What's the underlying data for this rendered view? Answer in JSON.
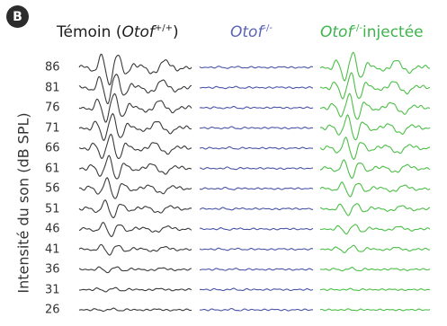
{
  "panel_label": "B",
  "columns": [
    {
      "id": "ctrl",
      "prefix": "Témoin (",
      "gene": "Otof",
      "sup": "+/+",
      "suffix": ")",
      "color": "#3a3a3a"
    },
    {
      "id": "ko",
      "prefix": "",
      "gene": "Otof",
      "sup": "-/-",
      "suffix": "",
      "color": "#4a55a8"
    },
    {
      "id": "inj",
      "prefix": "",
      "gene": "Otof",
      "sup": "-/-",
      "suffix": "injectée",
      "color": "#4cbf47"
    }
  ],
  "chart_data": {
    "type": "line",
    "ylabel": "Intensité du son (dB SPL)",
    "levels": [
      86,
      81,
      76,
      71,
      66,
      61,
      56,
      51,
      46,
      41,
      36,
      31,
      26
    ],
    "amplitude": {
      "ctrl": [
        1.0,
        0.95,
        0.9,
        0.85,
        0.8,
        0.72,
        0.62,
        0.52,
        0.42,
        0.32,
        0.18,
        0.12,
        0.08
      ],
      "ko": [
        0.05,
        0.05,
        0.05,
        0.05,
        0.05,
        0.05,
        0.05,
        0.05,
        0.05,
        0.05,
        0.05,
        0.05,
        0.05
      ],
      "inj": [
        0.9,
        0.85,
        0.8,
        0.75,
        0.65,
        0.55,
        0.45,
        0.38,
        0.3,
        0.22,
        0.1,
        0.04,
        0.03
      ]
    }
  }
}
